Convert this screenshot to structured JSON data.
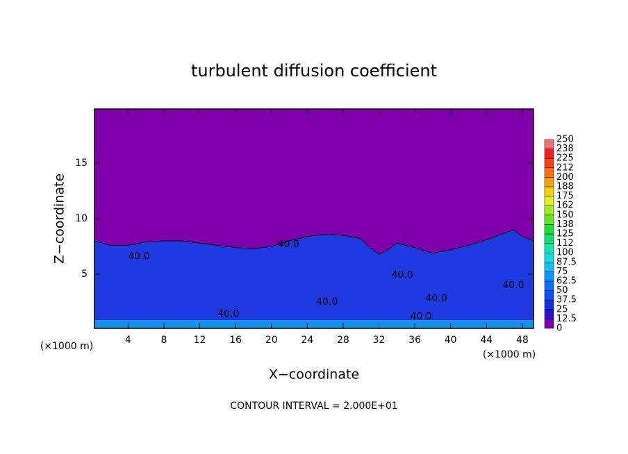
{
  "chart_data": {
    "type": "contour",
    "title": "turbulent diffusion coefficient",
    "x_label": "X−coordinate",
    "y_label": "Z−coordinate",
    "x_unit": "(×1000 m)",
    "x_unit_right": "(×1000 m)",
    "footnote": "CONTOUR INTERVAL = 2.000E+01",
    "xlim": [
      0.25,
      49.25
    ],
    "ylim": [
      0.125,
      19.875
    ],
    "xticks": [
      4,
      8,
      12,
      16,
      20,
      24,
      28,
      32,
      36,
      40,
      44,
      48
    ],
    "yticks": [
      5,
      10,
      15
    ],
    "background_color": "#7f00aa",
    "turbulent_layer": {
      "color": "#1f3ae0",
      "x": [
        0.25,
        2,
        4,
        6,
        8,
        10,
        12,
        14,
        16,
        18,
        20,
        22,
        24,
        26,
        28,
        30,
        31,
        32,
        33,
        34,
        36,
        38,
        40,
        42,
        44,
        46,
        47,
        48,
        49.25
      ],
      "z": [
        8,
        7.6,
        7.6,
        7.9,
        8,
        8,
        7.8,
        7.6,
        7.4,
        7.3,
        7.5,
        8,
        8.4,
        8.6,
        8.5,
        8.2,
        7.4,
        6.8,
        7.2,
        7.8,
        7.4,
        6.9,
        7.2,
        7.6,
        8.1,
        8.7,
        9,
        8.4,
        8
      ]
    },
    "contour_labels": [
      {
        "x": 5.2,
        "z": 6.6,
        "value": 40,
        "label": "40.0"
      },
      {
        "x": 21.9,
        "z": 7.7,
        "value": 40,
        "label": "40.0"
      },
      {
        "x": 15.2,
        "z": 1.4,
        "value": 40,
        "label": "40.0"
      },
      {
        "x": 26.2,
        "z": 2.5,
        "value": 40,
        "label": "40.0"
      },
      {
        "x": 38.4,
        "z": 2.8,
        "value": 40,
        "label": "40.0"
      },
      {
        "x": 36.7,
        "z": 1.2,
        "value": 40,
        "label": "40.0"
      },
      {
        "x": 47,
        "z": 4,
        "value": 40,
        "label": "40.0"
      },
      {
        "x": 34.6,
        "z": 4.9,
        "value": 40,
        "label": "40.0"
      }
    ],
    "colorbar": {
      "levels": [
        0,
        {
          "value": 12.5,
          "label": "12.5"
        },
        25,
        {
          "value": 37.5,
          "label": "37.5"
        },
        50,
        {
          "value": 62.5,
          "label": "62.5"
        },
        75,
        {
          "value": 87.5,
          "label": "87.5"
        },
        100,
        {
          "value": 112.5,
          "label": "112"
        },
        125,
        {
          "value": 137.5,
          "label": "138"
        },
        150,
        {
          "value": 162.5,
          "label": "162"
        },
        175,
        {
          "value": 187.5,
          "label": "188"
        },
        200,
        {
          "value": 212.5,
          "label": "212"
        },
        225,
        {
          "value": 237.5,
          "label": "238"
        },
        250
      ],
      "colors": [
        "#7f00aa",
        "#2a10c8",
        "#1a2ee0",
        "#1050f0",
        "#0a70f8",
        "#0898f8",
        "#10c0f0",
        "#10e0e0",
        "#10e8b0",
        "#10e070",
        "#20e030",
        "#60e820",
        "#a0f020",
        "#e0f020",
        "#f8d010",
        "#f8a010",
        "#f87010",
        "#f84010",
        "#f02020",
        "#f07070"
      ]
    }
  }
}
